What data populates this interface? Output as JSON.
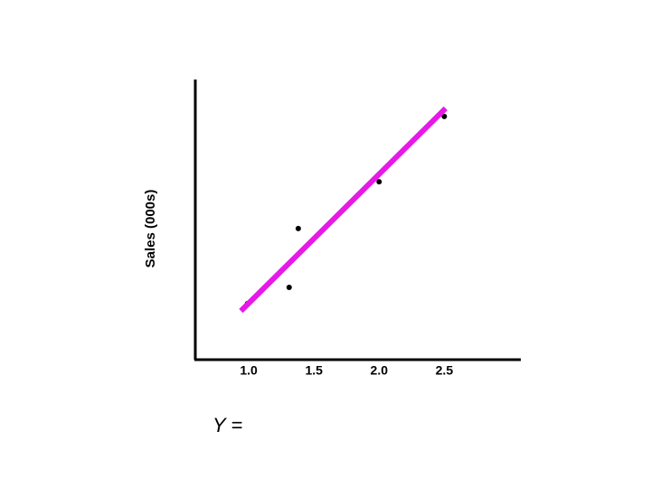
{
  "chart_data": {
    "type": "scatter",
    "y_label": "Sales (000s)",
    "annotation": "Y =",
    "xlim": [
      0.59,
      3.08
    ],
    "ylim": [
      0,
      10
    ],
    "xticks": [
      {
        "value": 1,
        "label": "1.0"
      },
      1.5,
      {
        "value": 2,
        "label": "2.0"
      },
      2.5
    ],
    "series": [
      {
        "mode": "markers",
        "color": "#000000",
        "x": [
          0.99,
          1.31,
          1.38,
          2.0,
          2.5
        ],
        "values": [
          2.0,
          2.58,
          4.68,
          6.35,
          8.68
        ]
      },
      {
        "mode": "line",
        "color": "#e619e6",
        "x": [
          0.94,
          2.51
        ],
        "values": [
          1.74,
          8.97
        ]
      }
    ]
  }
}
